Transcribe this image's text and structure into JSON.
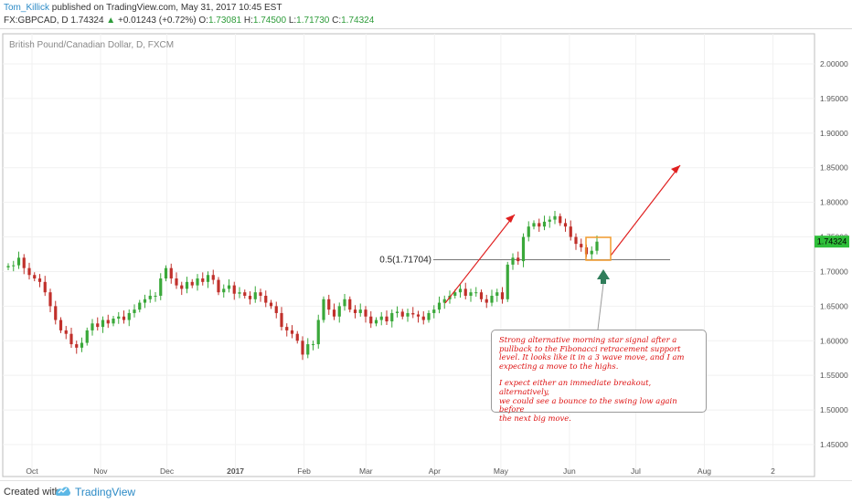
{
  "header": {
    "user": "Tom_Killick",
    "published_text": "published on TradingView.com, May 31, 2017 10:45 EST",
    "symbol": "FX:GBPCAD, D",
    "last": "1.74324",
    "change": "+0.01243 (+0.72%)",
    "ohlc_o_label": "O:",
    "ohlc_o": "1.73081",
    "ohlc_h_label": "H:",
    "ohlc_h": "1.74500",
    "ohlc_l_label": "L:",
    "ohlc_l": "1.71730",
    "ohlc_c_label": "C:",
    "ohlc_c": "1.74324"
  },
  "chart_data": {
    "type": "candlestick",
    "title": "British Pound/Canadian Dollar, D, FXCM",
    "ylim": [
      1.42,
      2.04
    ],
    "y_ticks": [
      "1.45000",
      "1.50000",
      "1.55000",
      "1.60000",
      "1.65000",
      "1.70000",
      "1.75000",
      "1.80000",
      "1.85000",
      "1.90000",
      "1.95000",
      "2.00000"
    ],
    "y_tick_values": [
      1.45,
      1.5,
      1.55,
      1.6,
      1.65,
      1.7,
      1.75,
      1.8,
      1.85,
      1.9,
      1.95,
      2.0
    ],
    "x_ticks": [
      "Oct",
      "Nov",
      "Dec",
      "2017",
      "Feb",
      "Mar",
      "Apr",
      "May",
      "Jun",
      "Jul",
      "Aug",
      "2"
    ],
    "x_tick_dates": [
      "2016-10-01",
      "2016-11-01",
      "2016-12-01",
      "2017-01-01",
      "2017-02-01",
      "2017-03-01",
      "2017-04-01",
      "2017-05-01",
      "2017-06-01",
      "2017-07-01",
      "2017-08-01",
      "2017-09-01"
    ],
    "last_price_label": "1.74324",
    "fib_level_label": "0.5(1.71704)",
    "fib_level": 1.71704,
    "colors": {
      "up": "#3aa83a",
      "down": "#c0302b",
      "arrow": "#e02020",
      "fib_line": "#777777",
      "box": "#f29b2e",
      "marker": "#2f7d5a",
      "price_tag": "#2fbf3a"
    },
    "closes": [
      [
        1.708,
        1.709,
        1.72,
        1.705,
        1.695,
        1.69,
        1.685,
        1.67,
        1.65,
        1.63,
        1.615,
        1.61,
        1.595,
        1.59,
        1.597,
        1.615,
        1.625,
        1.62,
        1.63,
        1.625,
        1.632,
        1.635,
        1.63,
        1.64,
        1.645,
        1.655,
        1.66,
        1.665
      ],
      [
        1.665,
        1.69,
        1.705,
        1.69,
        1.68,
        1.675,
        1.685,
        1.68,
        1.69,
        1.685,
        1.695,
        1.688,
        1.67,
        1.675,
        1.68,
        1.668,
        1.67,
        1.665,
        1.66,
        1.67,
        1.665,
        1.655,
        1.65,
        1.64,
        1.62,
        1.615,
        1.61,
        1.6,
        1.58,
        1.595
      ],
      [
        1.595,
        1.63,
        1.66,
        1.645,
        1.635,
        1.65,
        1.66,
        1.645,
        1.64,
        1.645,
        1.635,
        1.625,
        1.63,
        1.635,
        1.628,
        1.64,
        1.642,
        1.635,
        1.64,
        1.638,
        1.635,
        1.63,
        1.64,
        1.645,
        1.655,
        1.66,
        1.665,
        1.67,
        1.675,
        1.665,
        1.67
      ],
      [
        1.67,
        1.66,
        1.655,
        1.665,
        1.67,
        1.66,
        1.71,
        1.72,
        1.715,
        1.75,
        1.765,
        1.77,
        1.765,
        1.772,
        1.775,
        1.78,
        1.77,
        1.765,
        1.75,
        1.74,
        1.735,
        1.725,
        1.73,
        1.7432
      ]
    ],
    "callout_line1": "Strong alternative morning star signal after a",
    "callout_line2": "pullback to the Fibonacci retracement support",
    "callout_line3": "level. It looks like it in a 3 wave move, and I am",
    "callout_line4": "expecting a move to the highs.",
    "callout_line5": "I expect either an immediate breakout, alternatively,",
    "callout_line6": "we could see a bounce to the swing low again before",
    "callout_line7": "the next big move."
  },
  "footer": {
    "created_with": "Created with",
    "brand": "TradingView"
  }
}
